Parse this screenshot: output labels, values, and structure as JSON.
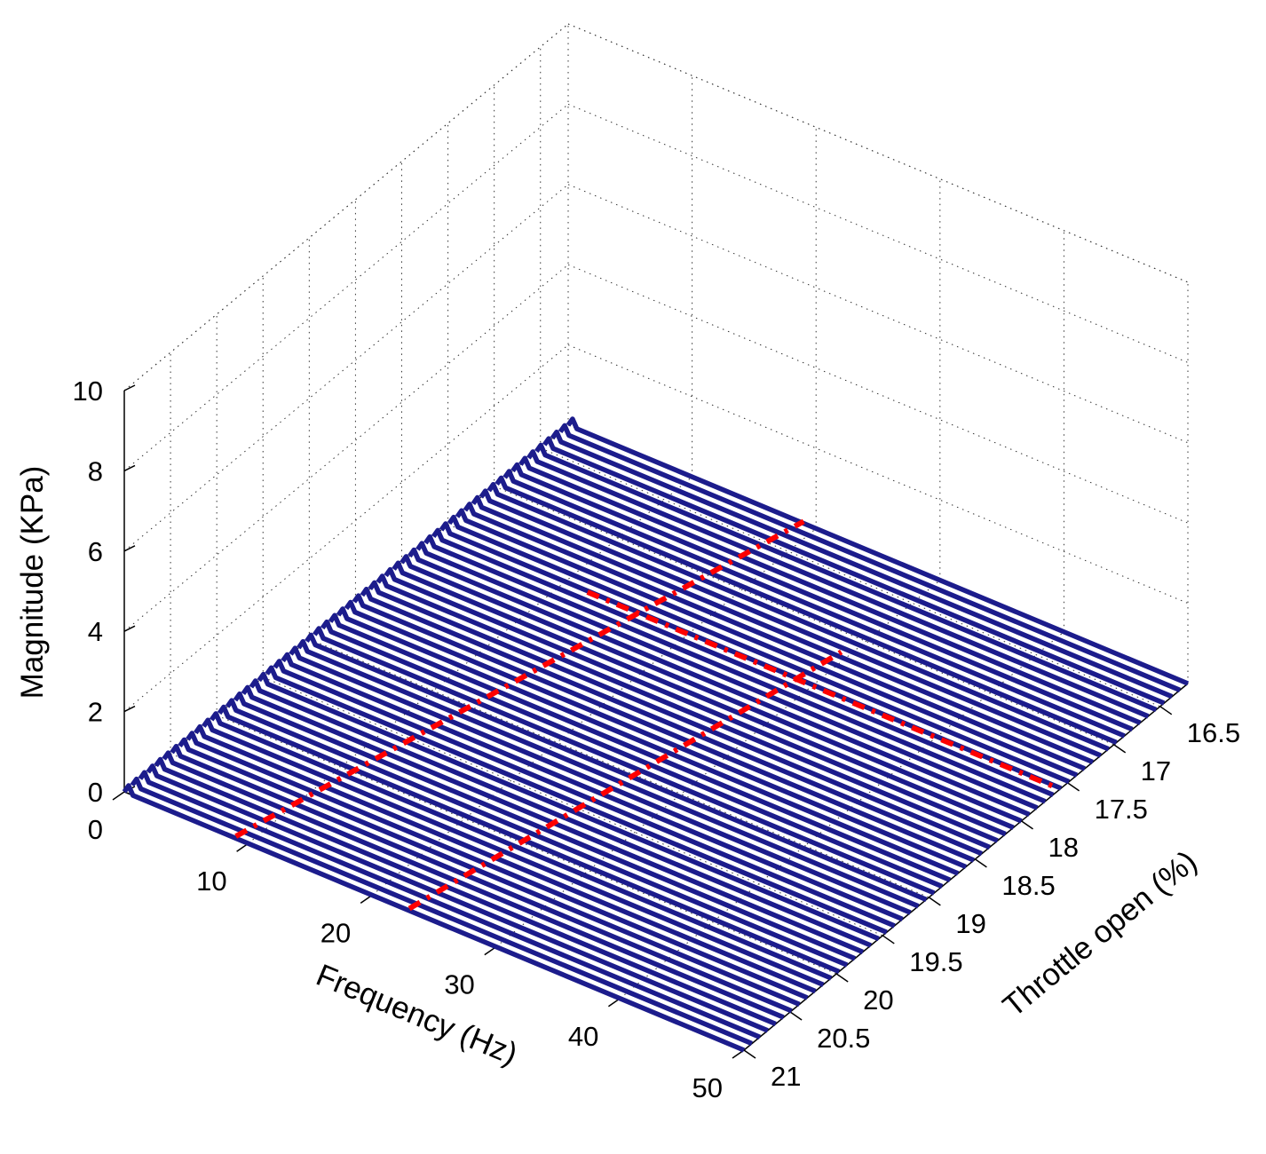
{
  "chart_data": {
    "type": "waterfall-3d",
    "title": "",
    "xlabel": "Frequency (Hz)",
    "ylabel": "Throttle open (%)",
    "zlabel": "Magnitude (KPa)",
    "xlim": [
      0,
      50
    ],
    "ylim": [
      16.2,
      21
    ],
    "zlim": [
      0,
      10
    ],
    "x_ticks": [
      0,
      10,
      20,
      30,
      40,
      50
    ],
    "x_tick_labels": [
      "0",
      "10",
      "20",
      "30",
      "40",
      "50"
    ],
    "y_ticks": [
      16.5,
      17,
      17.5,
      18,
      18.5,
      19,
      19.5,
      20,
      20.5,
      21
    ],
    "y_tick_labels": [
      "16.5",
      "17",
      "17.5",
      "18",
      "18.5",
      "19",
      "19.5",
      "20",
      "20.5",
      "21"
    ],
    "z_ticks": [
      0,
      2,
      4,
      6,
      8,
      10
    ],
    "z_tick_labels": [
      "0",
      "2",
      "4",
      "6",
      "8",
      "10"
    ],
    "grid": true,
    "series_color": "#1c1c8c",
    "series_count": 57,
    "series_y_range": [
      16.2,
      21
    ],
    "series_frequency_range": [
      0,
      50
    ],
    "series_start_bump": 0.2,
    "series_baseline": 0,
    "overlay_color": "#ff0000",
    "overlay_lines": [
      {
        "x": [
          9,
          19
        ],
        "y": [
          21,
          16.2
        ]
      },
      {
        "x": [
          23,
          29.5
        ],
        "y": [
          21,
          17.2
        ]
      },
      {
        "x": [
          12,
          50
        ],
        "y": [
          17.6,
          17.6
        ]
      }
    ]
  }
}
